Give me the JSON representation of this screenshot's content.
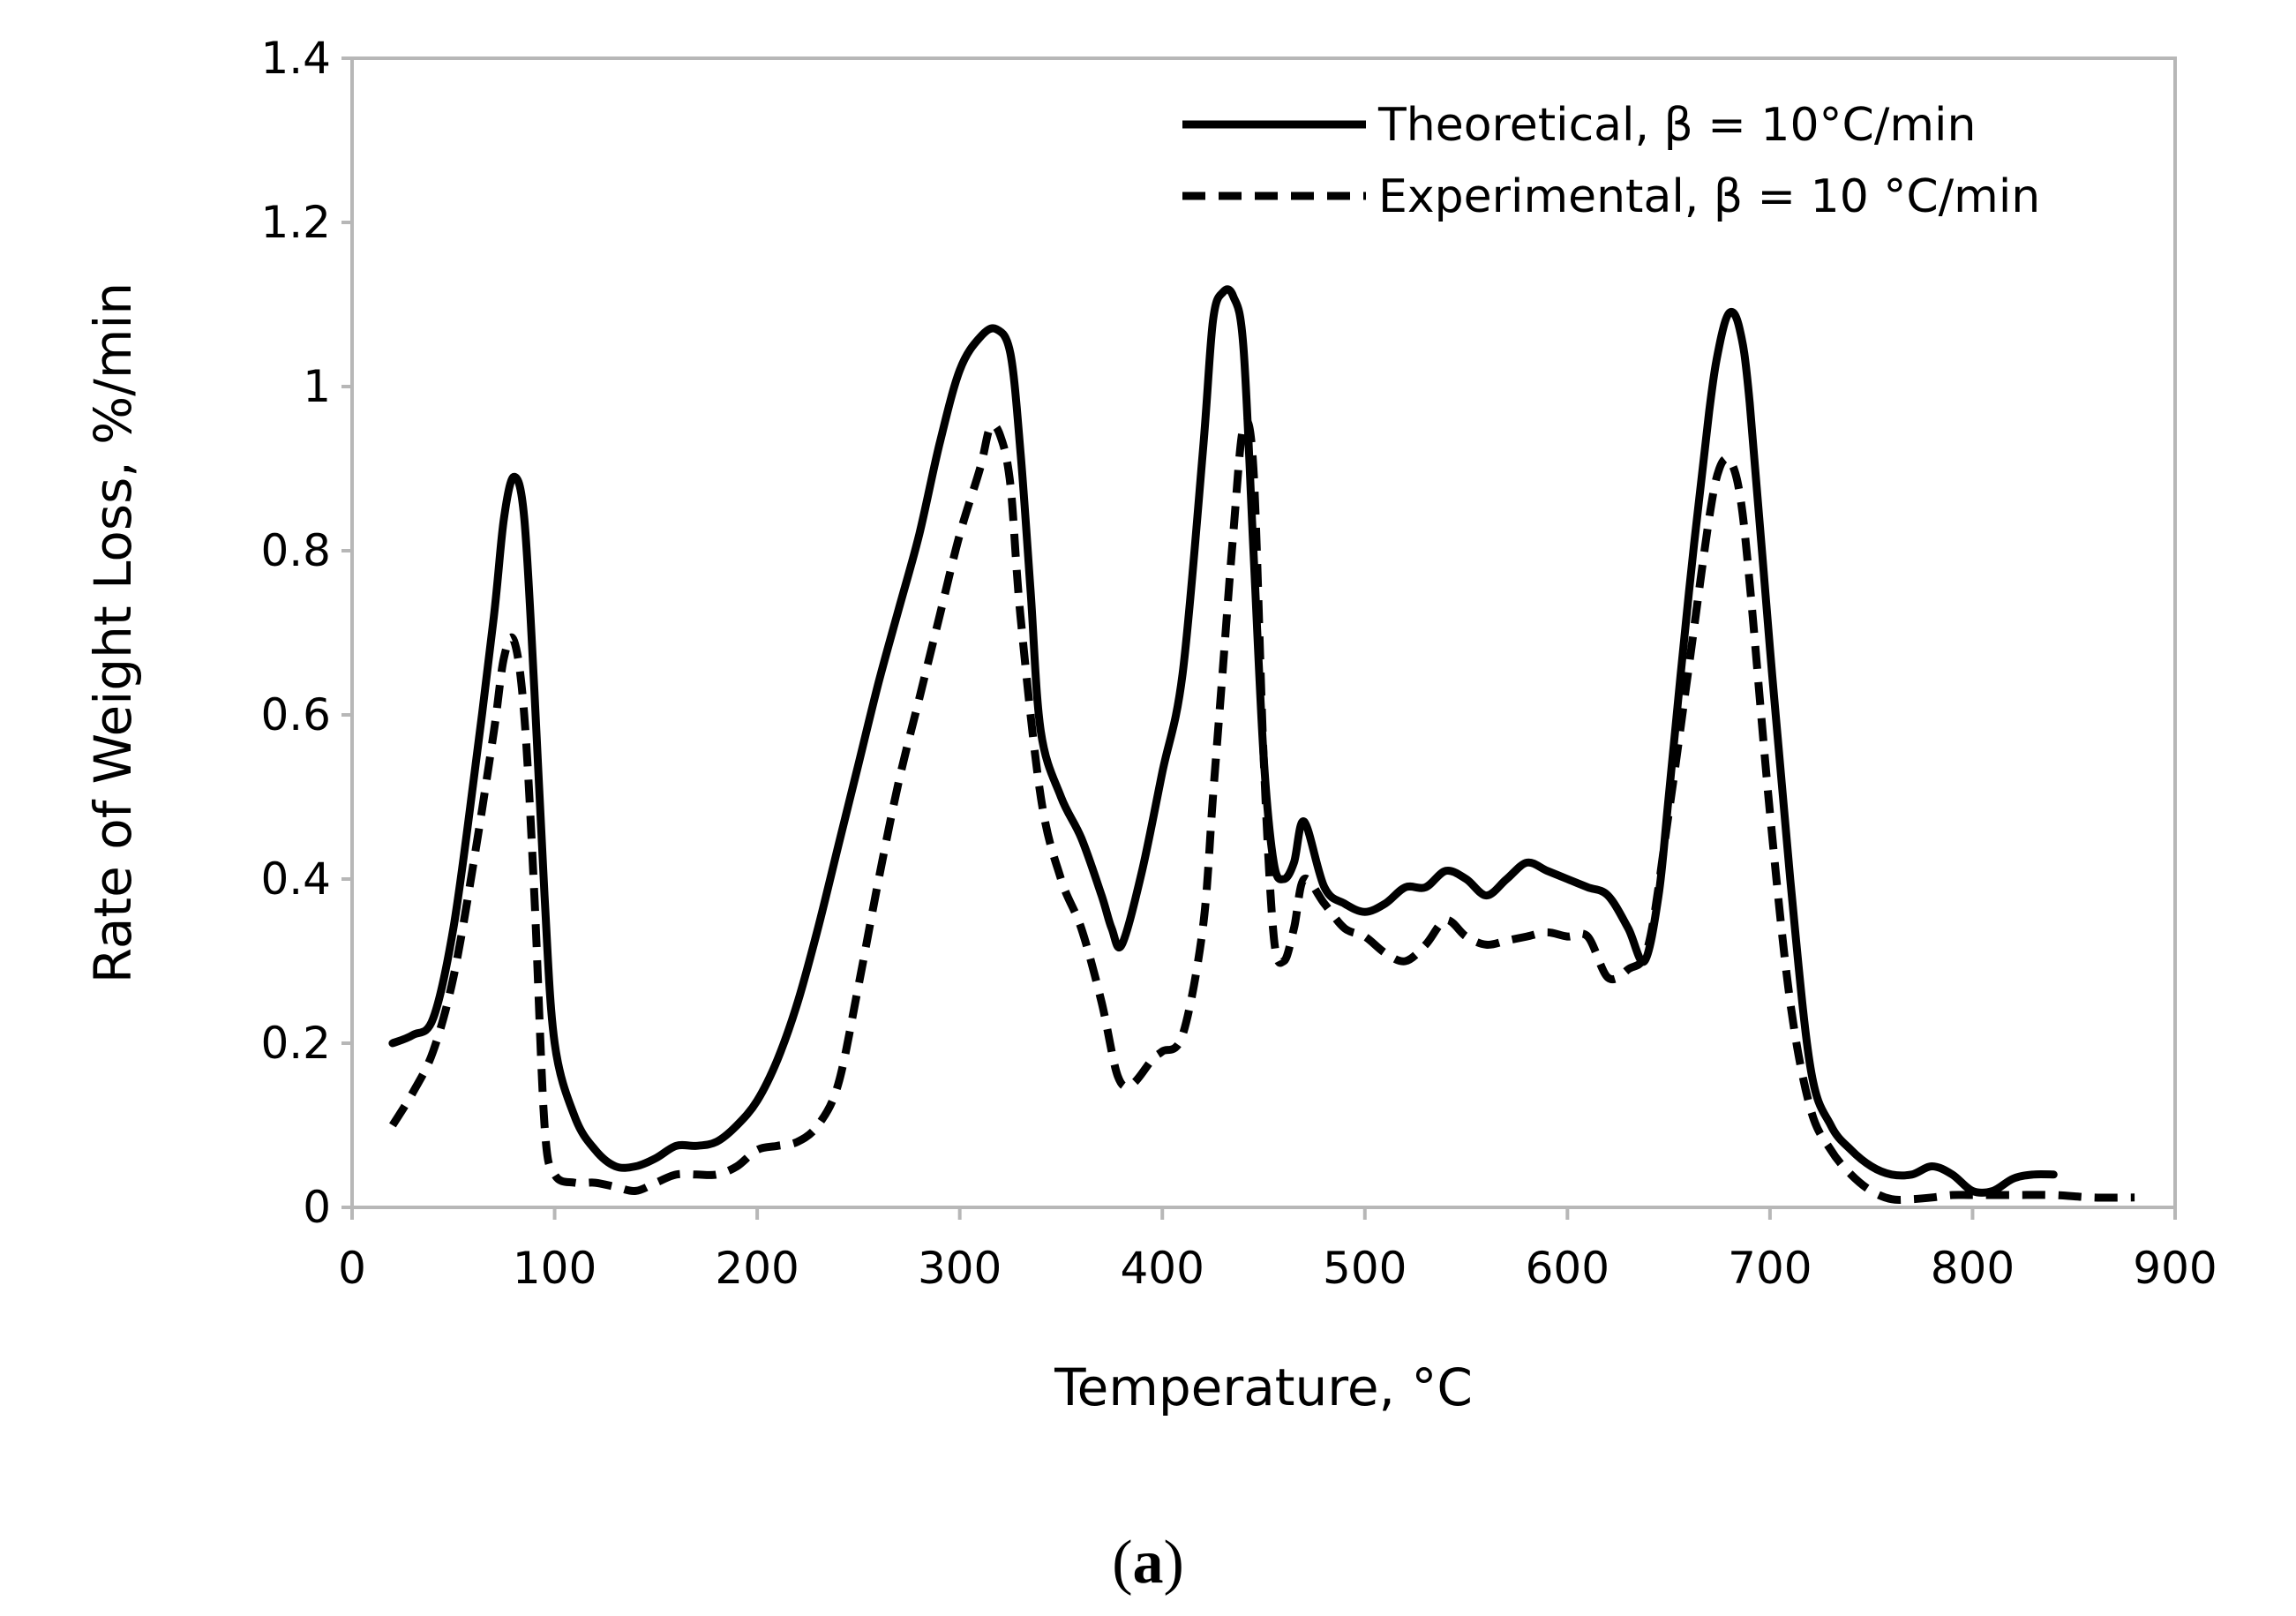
{
  "chart_data": {
    "type": "line",
    "xlabel": "Temperature, °C",
    "ylabel": "Rate of Weight Loss, %/min",
    "xlim": [
      0,
      900
    ],
    "ylim": [
      0,
      1.4
    ],
    "xticks": [
      "0",
      "100",
      "200",
      "300",
      "400",
      "500",
      "600",
      "700",
      "800",
      "900"
    ],
    "yticks": [
      "0",
      "0.2",
      "0.4",
      "0.6",
      "0.8",
      "1",
      "1.2",
      "1.4"
    ],
    "grid": false,
    "legend_position": "top-right",
    "series": [
      {
        "name": "Theoretical, β = 10°C/min",
        "style": "solid",
        "color": "#000000",
        "x": [
          20,
          30,
          40,
          50,
          60,
          70,
          75,
          80,
          85,
          90,
          95,
          100,
          110,
          120,
          130,
          140,
          150,
          160,
          170,
          180,
          190,
          200,
          210,
          220,
          230,
          240,
          250,
          260,
          270,
          280,
          290,
          300,
          310,
          318,
          325,
          330,
          335,
          340,
          350,
          360,
          370,
          375,
          380,
          390,
          400,
          410,
          420,
          425,
          430,
          435,
          440,
          445,
          450,
          455,
          460,
          465,
          470,
          480,
          490,
          500,
          510,
          520,
          530,
          540,
          550,
          560,
          570,
          580,
          590,
          600,
          610,
          620,
          630,
          638,
          645,
          650,
          660,
          670,
          675,
          680,
          685,
          690,
          700,
          710,
          720,
          730,
          740,
          750,
          760,
          770,
          780,
          790,
          800,
          810,
          820,
          830,
          840
        ],
        "values": [
          0.2,
          0.21,
          0.23,
          0.34,
          0.52,
          0.72,
          0.84,
          0.89,
          0.84,
          0.63,
          0.38,
          0.2,
          0.11,
          0.07,
          0.05,
          0.05,
          0.06,
          0.075,
          0.075,
          0.08,
          0.1,
          0.13,
          0.18,
          0.25,
          0.34,
          0.44,
          0.54,
          0.64,
          0.73,
          0.82,
          0.93,
          1.02,
          1.06,
          1.07,
          1.04,
          0.92,
          0.75,
          0.58,
          0.5,
          0.45,
          0.38,
          0.34,
          0.32,
          0.41,
          0.53,
          0.65,
          0.92,
          1.08,
          1.115,
          1.11,
          1.05,
          0.8,
          0.55,
          0.42,
          0.4,
          0.42,
          0.47,
          0.39,
          0.37,
          0.36,
          0.37,
          0.39,
          0.39,
          0.41,
          0.4,
          0.38,
          0.4,
          0.42,
          0.41,
          0.4,
          0.39,
          0.38,
          0.34,
          0.3,
          0.38,
          0.5,
          0.75,
          0.97,
          1.05,
          1.09,
          1.07,
          0.98,
          0.68,
          0.4,
          0.17,
          0.1,
          0.07,
          0.05,
          0.04,
          0.04,
          0.05,
          0.04,
          0.02,
          0.02,
          0.035,
          0.04,
          0.04
        ]
      },
      {
        "name": "Experimental, β = 10 °C/min",
        "style": "dashed",
        "color": "#000000",
        "x": [
          20,
          30,
          40,
          50,
          60,
          70,
          75,
          80,
          85,
          90,
          95,
          100,
          110,
          120,
          130,
          140,
          150,
          160,
          170,
          180,
          190,
          200,
          210,
          220,
          230,
          240,
          250,
          260,
          270,
          280,
          290,
          300,
          310,
          315,
          320,
          325,
          330,
          340,
          350,
          360,
          370,
          378,
          385,
          395,
          400,
          410,
          420,
          425,
          430,
          435,
          440,
          445,
          450,
          455,
          460,
          465,
          470,
          480,
          490,
          500,
          510,
          520,
          530,
          540,
          550,
          560,
          570,
          580,
          590,
          600,
          610,
          620,
          630,
          640,
          650,
          660,
          670,
          675,
          680,
          685,
          690,
          700,
          710,
          720,
          730,
          740,
          750,
          760,
          770,
          780,
          790,
          800,
          820,
          840,
          860,
          880
        ],
        "values": [
          0.1,
          0.14,
          0.19,
          0.28,
          0.42,
          0.58,
          0.67,
          0.69,
          0.6,
          0.38,
          0.1,
          0.04,
          0.03,
          0.03,
          0.025,
          0.02,
          0.03,
          0.04,
          0.04,
          0.04,
          0.05,
          0.07,
          0.075,
          0.08,
          0.1,
          0.15,
          0.27,
          0.4,
          0.52,
          0.62,
          0.72,
          0.82,
          0.9,
          0.95,
          0.94,
          0.88,
          0.72,
          0.5,
          0.4,
          0.34,
          0.25,
          0.16,
          0.15,
          0.18,
          0.19,
          0.21,
          0.34,
          0.5,
          0.66,
          0.82,
          0.95,
          0.9,
          0.55,
          0.33,
          0.3,
          0.34,
          0.4,
          0.37,
          0.34,
          0.33,
          0.31,
          0.3,
          0.32,
          0.35,
          0.33,
          0.32,
          0.325,
          0.33,
          0.335,
          0.33,
          0.33,
          0.28,
          0.29,
          0.32,
          0.48,
          0.66,
          0.84,
          0.9,
          0.91,
          0.87,
          0.76,
          0.48,
          0.25,
          0.12,
          0.07,
          0.04,
          0.02,
          0.01,
          0.01,
          0.012,
          0.015,
          0.015,
          0.015,
          0.015,
          0.012,
          0.012
        ]
      }
    ]
  },
  "caption": {
    "open": "(",
    "letter": "a",
    "close": ")"
  }
}
